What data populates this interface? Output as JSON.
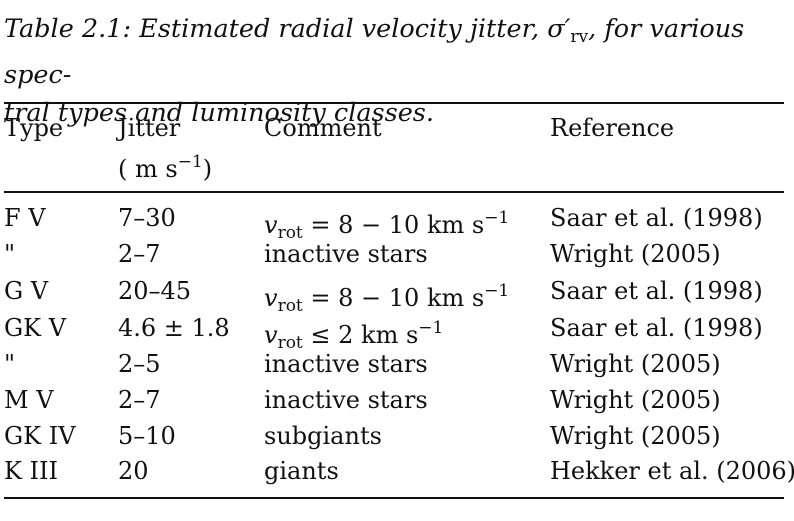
{
  "caption": {
    "line1_pre": "Table 2.1: Estimated radial velocity jitter, ",
    "symbol": "σ",
    "prime": "′",
    "symbol_sub": "rv",
    "line1_post": ", for various spec-",
    "line2": "tral types and luminosity classes."
  },
  "headers": {
    "type": "Type",
    "jitter": "Jitter",
    "jitter_unit_open": "( m s",
    "jitter_unit_exp": "−1",
    "jitter_unit_close": ")",
    "comment": "Comment",
    "reference": "Reference"
  },
  "rows": [
    {
      "type": "F V",
      "jitter": "7–30",
      "comment": {
        "kind": "vrot",
        "var": "v",
        "sub": "rot",
        "op": " = 8 − 10 km s",
        "exp": "−1"
      },
      "reference": "Saar et al. (1998)"
    },
    {
      "type": "\"",
      "jitter": "2–7",
      "comment": {
        "kind": "text",
        "text": "inactive stars"
      },
      "reference": "Wright (2005)"
    },
    {
      "type": "G V",
      "jitter": "20–45",
      "comment": {
        "kind": "vrot",
        "var": "v",
        "sub": "rot",
        "op": " = 8 − 10 km s",
        "exp": "−1"
      },
      "reference": "Saar et al. (1998)"
    },
    {
      "type": "GK V",
      "jitter": "4.6 ± 1.8",
      "comment": {
        "kind": "vrot",
        "var": "v",
        "sub": "rot",
        "op": " ≤ 2 km s",
        "exp": "−1"
      },
      "reference": "Saar et al. (1998)"
    },
    {
      "type": "\"",
      "jitter": "2–5",
      "comment": {
        "kind": "text",
        "text": "inactive stars"
      },
      "reference": "Wright (2005)"
    },
    {
      "type": "M V",
      "jitter": "2–7",
      "comment": {
        "kind": "text",
        "text": "inactive stars"
      },
      "reference": "Wright (2005)"
    },
    {
      "type": "GK IV",
      "jitter": "5–10",
      "comment": {
        "kind": "text",
        "text": "subgiants"
      },
      "reference": "Wright (2005)"
    },
    {
      "type": "K III",
      "jitter": "20",
      "comment": {
        "kind": "text",
        "text": "giants"
      },
      "reference": "Hekker et al. (2006)"
    }
  ]
}
